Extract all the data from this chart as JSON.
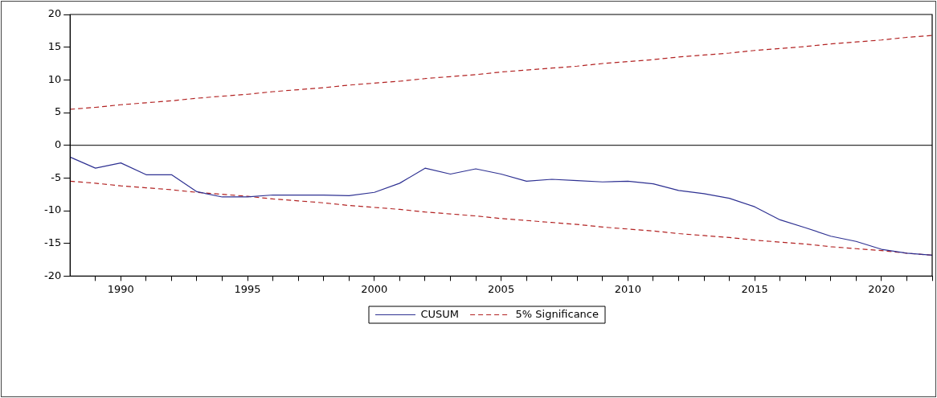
{
  "chart_data": {
    "type": "line",
    "x": [
      1988,
      1989,
      1990,
      1991,
      1992,
      1993,
      1994,
      1995,
      1996,
      1997,
      1998,
      1999,
      2000,
      2001,
      2002,
      2003,
      2004,
      2005,
      2006,
      2007,
      2008,
      2009,
      2010,
      2011,
      2012,
      2013,
      2014,
      2015,
      2016,
      2017,
      2018,
      2019,
      2020,
      2021,
      2022
    ],
    "series": [
      {
        "name": "CUSUM",
        "color": "#2e3192",
        "line_style": "solid",
        "values": [
          -1.8,
          -3.5,
          -2.7,
          -4.5,
          -4.5,
          -7.1,
          -7.9,
          -7.9,
          -7.6,
          -7.6,
          -7.6,
          -7.7,
          -7.2,
          -5.8,
          -3.5,
          -4.4,
          -3.6,
          -4.4,
          -5.5,
          -5.2,
          -5.4,
          -5.6,
          -5.5,
          -5.9,
          -6.9,
          -7.4,
          -8.1,
          -9.4,
          -11.4,
          -12.6,
          -13.9,
          -14.7,
          -15.9,
          -16.5,
          -16.8
        ]
      },
      {
        "name": "5% Significance",
        "color": "#b22222",
        "line_style": "dashed",
        "values": [
          5.5,
          5.8,
          6.2,
          6.5,
          6.8,
          7.2,
          7.5,
          7.8,
          8.2,
          8.5,
          8.8,
          9.2,
          9.5,
          9.8,
          10.2,
          10.5,
          10.8,
          11.2,
          11.5,
          11.8,
          12.1,
          12.5,
          12.8,
          13.1,
          13.5,
          13.8,
          14.1,
          14.5,
          14.8,
          15.1,
          15.5,
          15.8,
          16.1,
          16.5,
          16.8
        ]
      },
      {
        "color": "#b22222",
        "line_style": "dashed",
        "values": [
          -5.5,
          -5.8,
          -6.2,
          -6.5,
          -6.8,
          -7.2,
          -7.5,
          -7.8,
          -8.2,
          -8.5,
          -8.8,
          -9.2,
          -9.5,
          -9.8,
          -10.2,
          -10.5,
          -10.8,
          -11.2,
          -11.5,
          -11.8,
          -12.1,
          -12.5,
          -12.8,
          -13.1,
          -13.5,
          -13.8,
          -14.1,
          -14.5,
          -14.8,
          -15.1,
          -15.5,
          -15.8,
          -16.1,
          -16.5,
          -16.8
        ]
      }
    ],
    "xlim": [
      1988,
      2022
    ],
    "xticks": [
      {
        "value": 1989,
        "label": null
      },
      1990,
      {
        "value": 1991,
        "label": null
      },
      {
        "value": 1992,
        "label": null
      },
      {
        "value": 1993,
        "label": null
      },
      {
        "value": 1994,
        "label": null
      },
      1995,
      {
        "value": 1996,
        "label": null
      },
      {
        "value": 1997,
        "label": null
      },
      {
        "value": 1998,
        "label": null
      },
      {
        "value": 1999,
        "label": null
      },
      2000,
      {
        "value": 2001,
        "label": null
      },
      {
        "value": 2002,
        "label": null
      },
      {
        "value": 2003,
        "label": null
      },
      {
        "value": 2004,
        "label": null
      },
      2005,
      {
        "value": 2006,
        "label": null
      },
      {
        "value": 2007,
        "label": null
      },
      {
        "value": 2008,
        "label": null
      },
      {
        "value": 2009,
        "label": null
      },
      2010,
      {
        "value": 2011,
        "label": null
      },
      {
        "value": 2012,
        "label": null
      },
      {
        "value": 2013,
        "label": null
      },
      {
        "value": 2014,
        "label": null
      },
      2015,
      {
        "value": 2016,
        "label": null
      },
      {
        "value": 2017,
        "label": null
      },
      {
        "value": 2018,
        "label": null
      },
      {
        "value": 2019,
        "label": null
      },
      2020,
      {
        "value": 2021,
        "label": null
      },
      {
        "value": 2022,
        "label": null
      }
    ],
    "ylim": [
      -20,
      20
    ],
    "yticks": [
      -20,
      -15,
      -10,
      -5,
      0,
      5,
      10,
      15,
      20
    ],
    "ref_lines": [
      {
        "axis": "y",
        "value": 0,
        "color": "#000000",
        "line_style": "solid"
      }
    ],
    "grid": false,
    "legend": "bottom",
    "marker": "none"
  }
}
